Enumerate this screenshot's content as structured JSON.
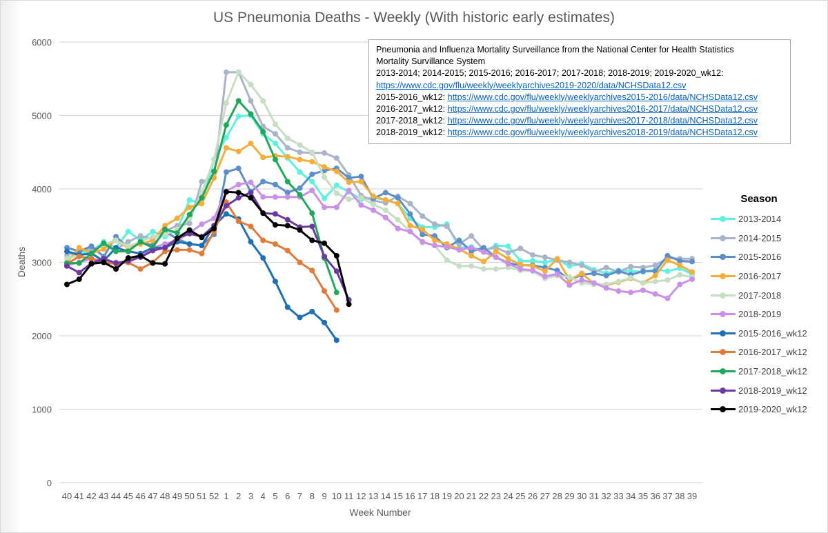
{
  "chart_data": {
    "type": "line",
    "title": "US Pneumonia Deaths - Weekly (With historic early estimates)",
    "xlabel": "Week Number",
    "ylabel": "Deaths",
    "ylim": [
      0,
      6000
    ],
    "yticks": [
      0,
      1000,
      2000,
      3000,
      4000,
      5000,
      6000
    ],
    "grid": true,
    "legend_title": "Season",
    "legend_position": "right",
    "x": [
      "40",
      "41",
      "42",
      "43",
      "44",
      "45",
      "46",
      "47",
      "48",
      "49",
      "50",
      "51",
      "52",
      "1",
      "2",
      "3",
      "4",
      "5",
      "6",
      "7",
      "8",
      "9",
      "10",
      "11",
      "12",
      "13",
      "14",
      "15",
      "16",
      "17",
      "18",
      "19",
      "20",
      "21",
      "22",
      "23",
      "24",
      "25",
      "26",
      "27",
      "28",
      "29",
      "30",
      "31",
      "32",
      "33",
      "34",
      "35",
      "36",
      "37",
      "38",
      "39"
    ],
    "series": [
      {
        "name": "2013-2014",
        "color": "#5ef0e0",
        "values": [
          3050,
          3120,
          3150,
          3280,
          3200,
          3420,
          3300,
          3420,
          3350,
          3450,
          3850,
          3800,
          4400,
          4700,
          4990,
          5000,
          4750,
          4620,
          4420,
          4230,
          4100,
          3870,
          4050,
          3960,
          3860,
          3880,
          3850,
          3800,
          3600,
          3480,
          3480,
          3520,
          3200,
          3210,
          3150,
          3230,
          3220,
          3020,
          3020,
          3000,
          3040,
          2950,
          2980,
          2900,
          2850,
          2890,
          2880,
          2870,
          2900,
          2880,
          2920,
          2840
        ]
      },
      {
        "name": "2014-2015",
        "color": "#a9b4c8",
        "values": [
          3100,
          3150,
          3180,
          3230,
          3180,
          3280,
          3360,
          3320,
          3430,
          3500,
          3530,
          4100,
          4150,
          5590,
          5590,
          5200,
          4850,
          4750,
          4560,
          4500,
          4490,
          4490,
          4420,
          4190,
          3910,
          3840,
          3810,
          3900,
          3800,
          3630,
          3520,
          3490,
          3250,
          3360,
          3170,
          3200,
          3130,
          3190,
          3100,
          3070,
          3030,
          3000,
          2960,
          2870,
          2930,
          2870,
          2940,
          2930,
          2960,
          3060,
          3050,
          3050
        ]
      },
      {
        "name": "2015-2016",
        "color": "#5b8ecb",
        "values": [
          3200,
          3150,
          3220,
          3080,
          3350,
          3200,
          3280,
          3230,
          3420,
          3320,
          3250,
          3230,
          3380,
          4230,
          4280,
          3960,
          4100,
          4060,
          3950,
          4010,
          4200,
          4250,
          4280,
          4150,
          4170,
          3870,
          3950,
          3880,
          3660,
          3380,
          3360,
          3200,
          3300,
          3150,
          3200,
          3070,
          2990,
          2960,
          2960,
          2930,
          2890,
          2760,
          2830,
          2850,
          2820,
          2880,
          2830,
          2880,
          2880,
          3090,
          3020,
          3010
        ]
      },
      {
        "name": "2016-2017",
        "color": "#f6ae3b",
        "values": [
          3000,
          3200,
          3120,
          3180,
          3300,
          3200,
          3250,
          3300,
          3500,
          3600,
          3750,
          3800,
          4150,
          4560,
          4510,
          4620,
          4430,
          4450,
          4440,
          4400,
          4370,
          4300,
          4240,
          4090,
          4100,
          3900,
          3850,
          3800,
          3500,
          3450,
          3300,
          3250,
          3180,
          3090,
          3010,
          3150,
          3050,
          2970,
          2950,
          2880,
          3050,
          2760,
          2850,
          2710,
          2690,
          2730,
          2780,
          2720,
          2820,
          3030,
          2960,
          2870
        ]
      },
      {
        "name": "2017-2018",
        "color": "#c6dfc2",
        "values": [
          3050,
          3100,
          3120,
          3250,
          3300,
          3220,
          3280,
          3350,
          3380,
          3450,
          3600,
          3950,
          4400,
          5170,
          5590,
          5420,
          5200,
          4880,
          4690,
          4600,
          4500,
          4160,
          3940,
          3860,
          3880,
          3790,
          3710,
          3580,
          3420,
          3270,
          3230,
          3030,
          2950,
          2950,
          2910,
          2910,
          2930,
          2890,
          2880,
          2780,
          2820,
          2800,
          2720,
          2700,
          2700,
          2740,
          2790,
          2720,
          2740,
          2760,
          2830,
          2800
        ]
      },
      {
        "name": "2018-2019",
        "color": "#c991e8",
        "values": [
          2960,
          3000,
          3050,
          3020,
          3000,
          3000,
          3080,
          3200,
          3250,
          3300,
          3400,
          3520,
          3600,
          3970,
          4060,
          4090,
          3890,
          3890,
          3890,
          3890,
          3980,
          3750,
          3750,
          3980,
          3780,
          3710,
          3610,
          3460,
          3420,
          3280,
          3230,
          3210,
          3170,
          3200,
          3140,
          3070,
          2980,
          2910,
          2890,
          2810,
          2840,
          2690,
          2760,
          2720,
          2650,
          2610,
          2590,
          2620,
          2570,
          2510,
          2700,
          2770
        ]
      },
      {
        "name": "2015-2016_wk12",
        "color": "#1f6fb4",
        "values": [
          3150,
          3100,
          3120,
          3020,
          3200,
          3150,
          3120,
          3200,
          3200,
          3280,
          3250,
          3230,
          3500,
          3660,
          3590,
          3280,
          3060,
          2740,
          2390,
          2250,
          2330,
          2180,
          1940,
          null,
          null,
          null,
          null,
          null,
          null,
          null,
          null,
          null,
          null,
          null,
          null,
          null,
          null,
          null,
          null,
          null,
          null,
          null,
          null,
          null,
          null,
          null,
          null,
          null,
          null,
          null,
          null,
          null
        ]
      },
      {
        "name": "2016-2017_wk12",
        "color": "#e07b39",
        "values": [
          2980,
          3080,
          3050,
          3000,
          2980,
          3000,
          2910,
          3000,
          3150,
          3170,
          3170,
          3120,
          3420,
          3820,
          3560,
          3490,
          3300,
          3250,
          3160,
          3000,
          2890,
          2610,
          2350,
          null,
          null,
          null,
          null,
          null,
          null,
          null,
          null,
          null,
          null,
          null,
          null,
          null,
          null,
          null,
          null,
          null,
          null,
          null,
          null,
          null,
          null,
          null,
          null,
          null,
          null,
          null,
          null,
          null
        ]
      },
      {
        "name": "2017-2018_wk12",
        "color": "#1fa85a",
        "values": [
          2990,
          2990,
          3120,
          3260,
          3150,
          3150,
          3280,
          3200,
          3450,
          3400,
          3650,
          3880,
          4240,
          4870,
          5200,
          5020,
          4780,
          4400,
          4100,
          3920,
          3670,
          3060,
          2590,
          null,
          null,
          null,
          null,
          null,
          null,
          null,
          null,
          null,
          null,
          null,
          null,
          null,
          null,
          null,
          null,
          null,
          null,
          null,
          null,
          null,
          null,
          null,
          null,
          null,
          null,
          null,
          null,
          null
        ]
      },
      {
        "name": "2018-2019_wk12",
        "color": "#6a3a9e",
        "values": [
          2950,
          2860,
          2990,
          3050,
          2990,
          3020,
          3070,
          3160,
          3200,
          3330,
          3390,
          3350,
          3500,
          3770,
          3880,
          3950,
          3670,
          3660,
          3580,
          3480,
          3490,
          3080,
          2880,
          2490,
          null,
          null,
          null,
          null,
          null,
          null,
          null,
          null,
          null,
          null,
          null,
          null,
          null,
          null,
          null,
          null,
          null,
          null,
          null,
          null,
          null,
          null,
          null,
          null,
          null,
          null,
          null,
          null
        ]
      },
      {
        "name": "2019-2020_wk12",
        "color": "#000000",
        "values": [
          2700,
          2770,
          2980,
          3000,
          2910,
          3060,
          3090,
          2990,
          2980,
          3330,
          3440,
          3340,
          3460,
          3960,
          3950,
          3880,
          3670,
          3510,
          3500,
          3440,
          3300,
          3260,
          3090,
          2430,
          null,
          null,
          null,
          null,
          null,
          null,
          null,
          null,
          null,
          null,
          null,
          null,
          null,
          null,
          null,
          null,
          null,
          null,
          null,
          null,
          null,
          null,
          null,
          null,
          null,
          null,
          null,
          null
        ]
      }
    ]
  },
  "note": {
    "line1": "Pneumonia and Influenza Mortality Surveillance from the National Center for Health Statistics",
    "line2": "Mortality Survillance System",
    "line3": "2013-2014; 2014-2015; 2015-2016; 2016-2017; 2017-2018; 2018-2019; 2019-2020_wk12:",
    "link1": "https://www.cdc.gov/flu/weekly/weeklyarchives2019-2020/data/NCHSData12.csv",
    "rows": [
      {
        "label": "2015-2016_wk12: ",
        "link": "https://www.cdc.gov/flu/weekly/weeklyarchives2015-2016/data/NCHSData12.csv"
      },
      {
        "label": "2016-2017_wk12: ",
        "link": "https://www.cdc.gov/flu/weekly/weeklyarchives2016-2017/data/NCHSData12.csv"
      },
      {
        "label": "2017-2018_wk12: ",
        "link": "https://www.cdc.gov/flu/weekly/weeklyarchives2017-2018/data/NCHSData12.csv"
      },
      {
        "label": "2018-2019_wk12:  ",
        "link": "https://www.cdc.gov/flu/weekly/weeklyarchives2018-2019/data/NCHSData12.csv"
      }
    ]
  }
}
